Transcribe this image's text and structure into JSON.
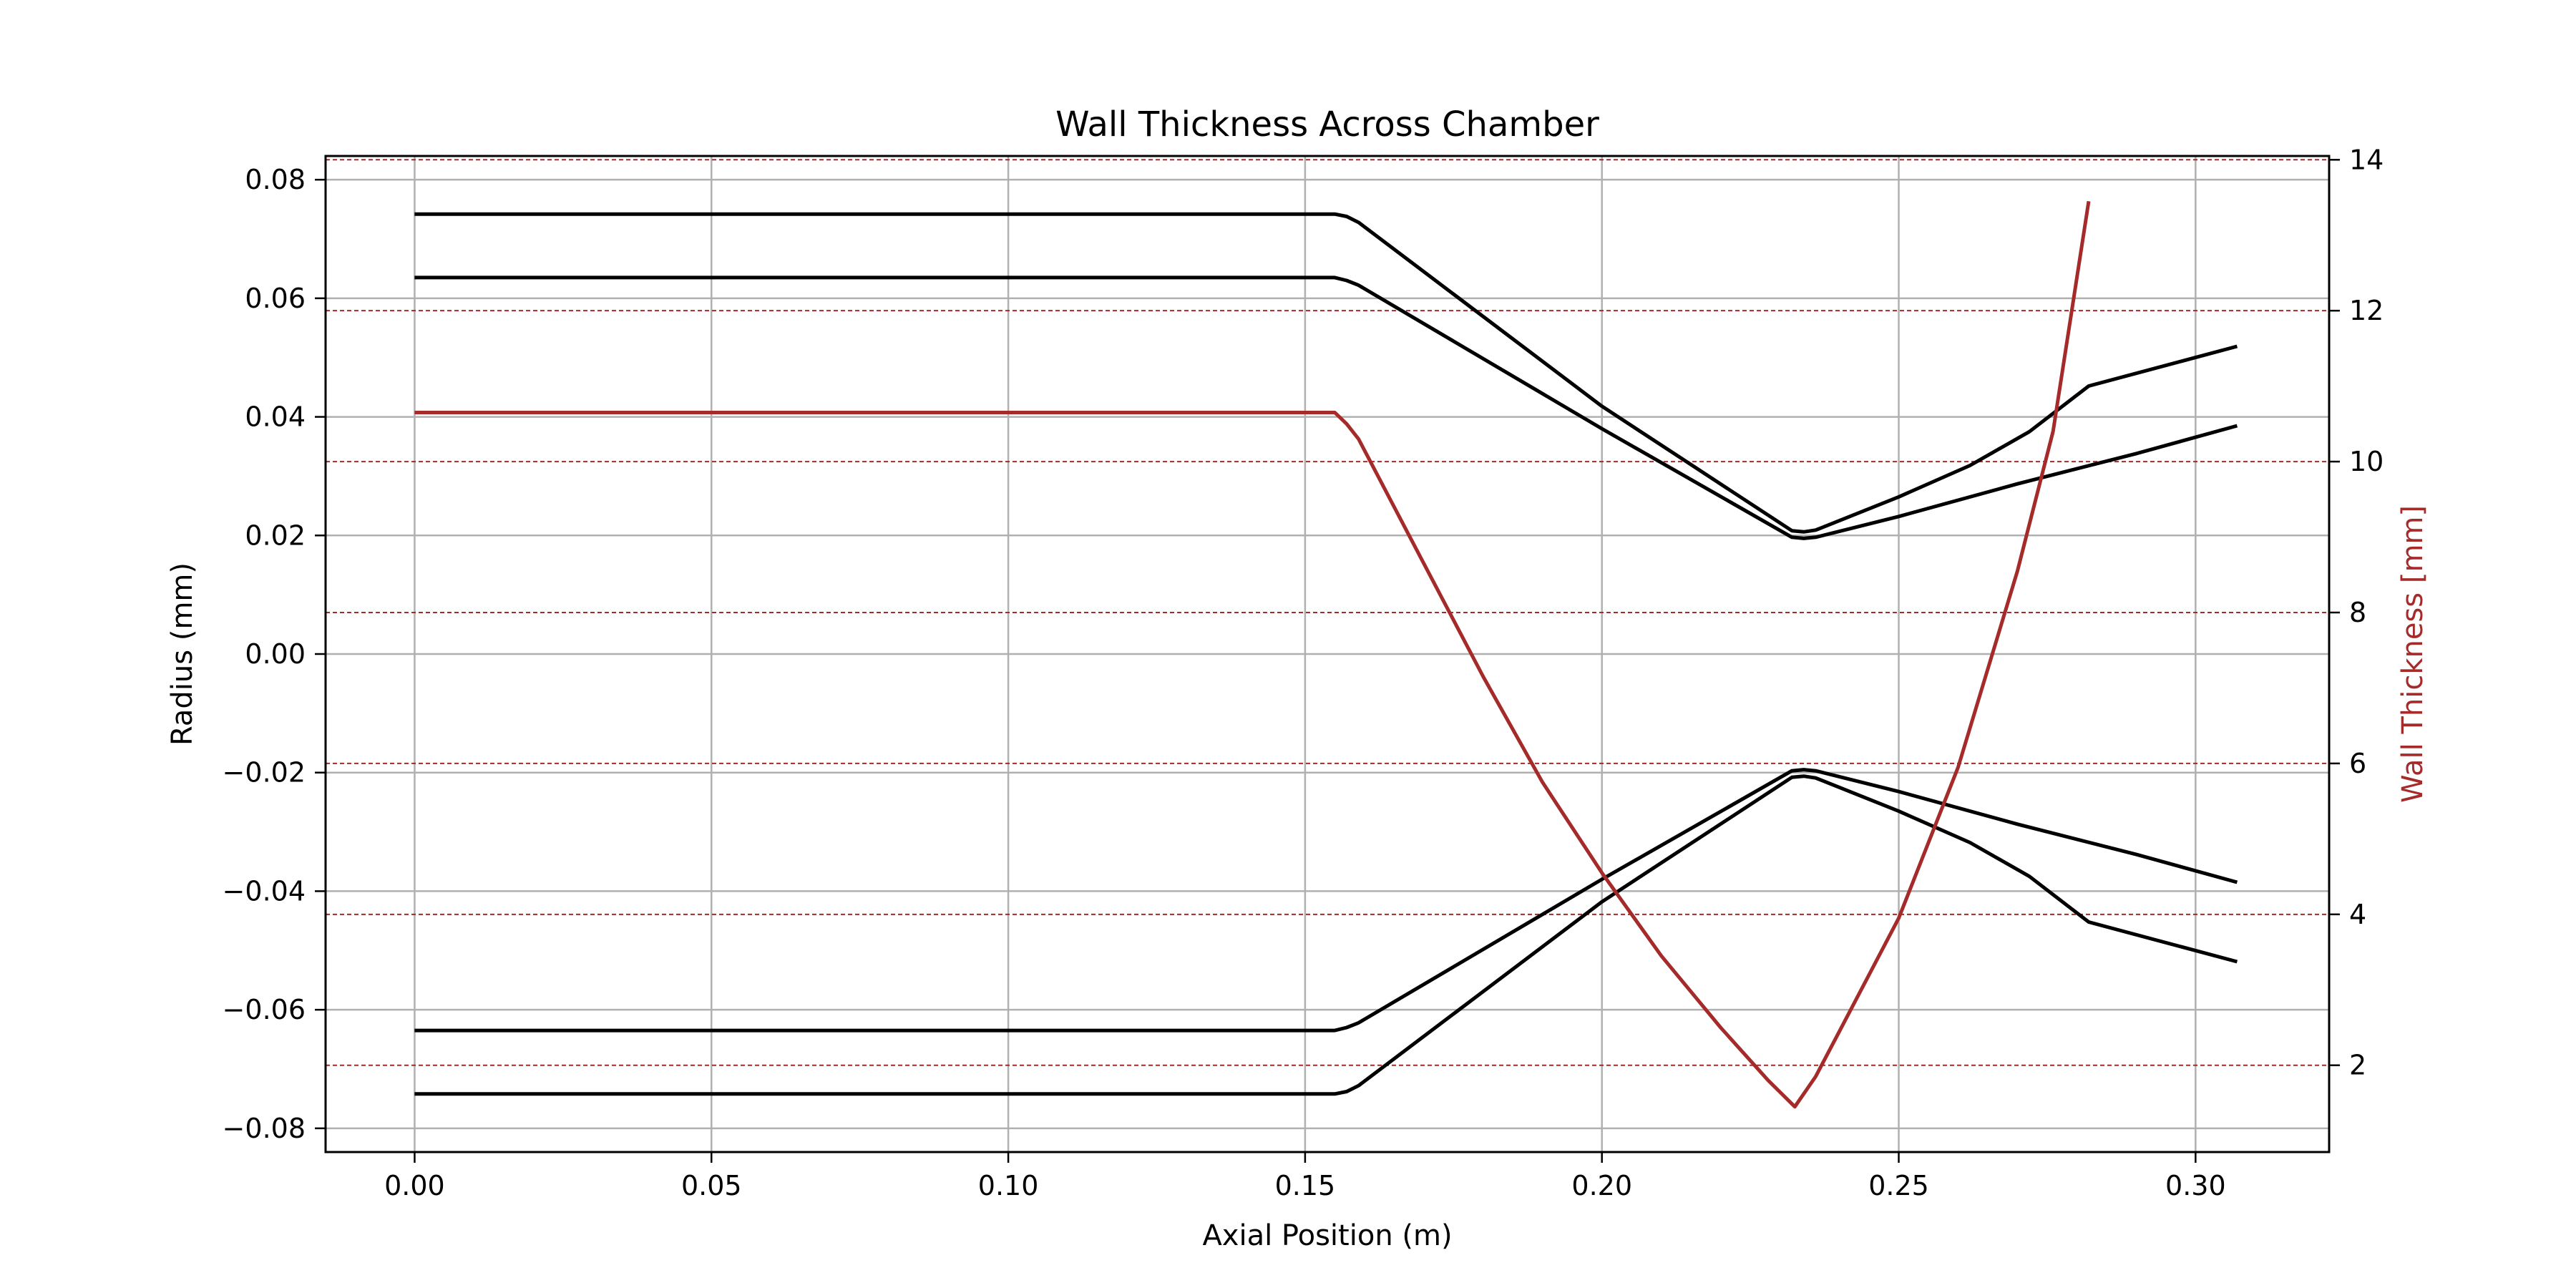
{
  "chart_data": {
    "type": "line",
    "title": "Wall Thickness Across Chamber",
    "xlabel": "Axial Position (m)",
    "ylabel": "Radius (mm)",
    "y2label": "Wall Thickness [mm]",
    "xlim": [
      -0.015,
      0.3225
    ],
    "ylim": [
      -0.084,
      0.084
    ],
    "y2lim": [
      0.85,
      14.05
    ],
    "grid": true,
    "x_ticks": [
      0.0,
      0.05,
      0.1,
      0.15,
      0.2,
      0.25,
      0.3
    ],
    "x_tick_labels": [
      "0.00",
      "0.05",
      "0.10",
      "0.15",
      "0.20",
      "0.25",
      "0.30"
    ],
    "y_ticks": [
      -0.08,
      -0.06,
      -0.04,
      -0.02,
      0.0,
      0.02,
      0.04,
      0.06,
      0.08
    ],
    "y_tick_labels": [
      "−0.08",
      "−0.06",
      "−0.04",
      "−0.02",
      "0.00",
      "0.02",
      "0.04",
      "0.06",
      "0.08"
    ],
    "y2_ticks": [
      2,
      4,
      6,
      8,
      10,
      12,
      14
    ],
    "y2_tick_labels": [
      "2",
      "4",
      "6",
      "8",
      "10",
      "12",
      "14"
    ],
    "colors": {
      "contour": "#000000",
      "thickness": "#a52a2a",
      "grid": "#b0b0b0"
    },
    "series": [
      {
        "axis": "left",
        "points": [
          [
            0,
            0.0742
          ],
          [
            0.155,
            0.0742
          ],
          [
            0.157,
            0.0738
          ],
          [
            0.159,
            0.0728
          ],
          [
            0.2,
            0.0418
          ],
          [
            0.232,
            0.0208
          ],
          [
            0.234,
            0.0206
          ],
          [
            0.236,
            0.0209
          ],
          [
            0.25,
            0.0265
          ],
          [
            0.262,
            0.0318
          ],
          [
            0.272,
            0.0375
          ],
          [
            0.282,
            0.0452
          ],
          [
            0.307,
            0.0519
          ]
        ]
      },
      {
        "axis": "left",
        "points": [
          [
            0,
            0.0635
          ],
          [
            0.155,
            0.0635
          ],
          [
            0.157,
            0.063
          ],
          [
            0.159,
            0.0622
          ],
          [
            0.2,
            0.038
          ],
          [
            0.232,
            0.0197
          ],
          [
            0.234,
            0.0195
          ],
          [
            0.236,
            0.0197
          ],
          [
            0.25,
            0.0232
          ],
          [
            0.27,
            0.0287
          ],
          [
            0.29,
            0.0338
          ],
          [
            0.307,
            0.0385
          ]
        ]
      },
      {
        "axis": "left",
        "points": [
          [
            0,
            -0.0635
          ],
          [
            0.155,
            -0.0635
          ],
          [
            0.157,
            -0.063
          ],
          [
            0.159,
            -0.0622
          ],
          [
            0.2,
            -0.038
          ],
          [
            0.232,
            -0.0197
          ],
          [
            0.234,
            -0.0195
          ],
          [
            0.236,
            -0.0197
          ],
          [
            0.25,
            -0.0232
          ],
          [
            0.27,
            -0.0287
          ],
          [
            0.29,
            -0.0338
          ],
          [
            0.307,
            -0.0385
          ]
        ]
      },
      {
        "axis": "left",
        "points": [
          [
            0,
            -0.0742
          ],
          [
            0.155,
            -0.0742
          ],
          [
            0.157,
            -0.0738
          ],
          [
            0.159,
            -0.0728
          ],
          [
            0.2,
            -0.0418
          ],
          [
            0.232,
            -0.0208
          ],
          [
            0.234,
            -0.0206
          ],
          [
            0.236,
            -0.0209
          ],
          [
            0.25,
            -0.0265
          ],
          [
            0.262,
            -0.0318
          ],
          [
            0.272,
            -0.0375
          ],
          [
            0.282,
            -0.0452
          ],
          [
            0.307,
            -0.0519
          ]
        ]
      },
      {
        "axis": "right",
        "points": [
          [
            0,
            10.65
          ],
          [
            0.155,
            10.65
          ],
          [
            0.157,
            10.5
          ],
          [
            0.159,
            10.3
          ],
          [
            0.165,
            9.4
          ],
          [
            0.17,
            8.65
          ],
          [
            0.18,
            7.15
          ],
          [
            0.19,
            5.75
          ],
          [
            0.2,
            4.55
          ],
          [
            0.21,
            3.45
          ],
          [
            0.22,
            2.5
          ],
          [
            0.228,
            1.8
          ],
          [
            0.2325,
            1.45
          ],
          [
            0.236,
            1.85
          ],
          [
            0.24,
            2.45
          ],
          [
            0.25,
            3.95
          ],
          [
            0.26,
            5.95
          ],
          [
            0.27,
            8.55
          ],
          [
            0.276,
            10.4
          ],
          [
            0.282,
            13.45
          ]
        ]
      }
    ]
  }
}
